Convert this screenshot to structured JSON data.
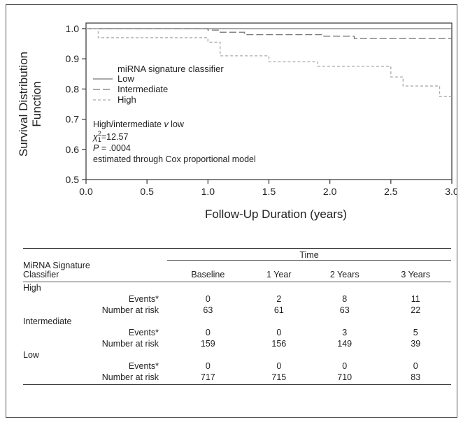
{
  "chart_data": {
    "type": "line",
    "title": "",
    "xlabel": "Follow-Up Duration (years)",
    "ylabel_lines": [
      "Survival Distribution",
      "Function"
    ],
    "xlim": [
      0,
      3
    ],
    "ylim": [
      0.5,
      1.0
    ],
    "xticks": [
      "0.0",
      "0.5",
      "1.0",
      "1.5",
      "2.0",
      "2.5",
      "3.0"
    ],
    "yticks": [
      "0.5",
      "0.6",
      "0.7",
      "0.8",
      "0.9",
      "1.0"
    ],
    "grid": false,
    "legend": {
      "title": "miRNA signature classifier",
      "placement": "top-left",
      "entries": [
        "Low",
        "Intermediate",
        "High"
      ]
    },
    "series": [
      {
        "name": "Low",
        "color": "#777777",
        "style": "solid",
        "steps": [
          [
            0,
            1.0
          ],
          [
            3.0,
            1.0
          ]
        ]
      },
      {
        "name": "Intermediate",
        "color": "#777777",
        "style": "long-dash",
        "steps": [
          [
            0,
            1.0
          ],
          [
            1.0,
            0.995
          ],
          [
            1.1,
            0.988
          ],
          [
            1.3,
            0.98
          ],
          [
            1.95,
            0.975
          ],
          [
            2.2,
            0.967
          ],
          [
            3.0,
            0.967
          ]
        ]
      },
      {
        "name": "High",
        "color": "#aaaaaa",
        "style": "short-dash",
        "steps": [
          [
            0,
            1.0
          ],
          [
            0.1,
            0.97
          ],
          [
            1.0,
            0.955
          ],
          [
            1.1,
            0.91
          ],
          [
            1.5,
            0.89
          ],
          [
            1.9,
            0.875
          ],
          [
            2.5,
            0.84
          ],
          [
            2.6,
            0.81
          ],
          [
            2.9,
            0.775
          ],
          [
            3.0,
            0.775
          ]
        ]
      }
    ],
    "annotation": {
      "comparison_pre": "High/intermediate ",
      "comparison_v": "v",
      "comparison_post": " low",
      "chi_symbol": "χ",
      "chi_sup": "2",
      "chi_sub": "1",
      "chi_value": "=12.57",
      "p_label": "P",
      "p_value": " = .0004",
      "method": "estimated through Cox proportional model"
    }
  },
  "risk_table": {
    "time_label": "Time",
    "first_col_line1": "MiRNA Signature",
    "first_col_line2": "Classifier",
    "columns": [
      "Baseline",
      "1 Year",
      "2 Years",
      "3 Years"
    ],
    "groups": [
      {
        "name": "High",
        "rows": [
          {
            "label": "Events*",
            "values": [
              "0",
              "2",
              "8",
              "11"
            ]
          },
          {
            "label": "Number at risk",
            "values": [
              "63",
              "61",
              "63",
              "22"
            ]
          }
        ]
      },
      {
        "name": "Intermediate",
        "rows": [
          {
            "label": "Events*",
            "values": [
              "0",
              "0",
              "3",
              "5"
            ]
          },
          {
            "label": "Number at risk",
            "values": [
              "159",
              "156",
              "149",
              "39"
            ]
          }
        ]
      },
      {
        "name": "Low",
        "rows": [
          {
            "label": "Events*",
            "values": [
              "0",
              "0",
              "0",
              "0"
            ]
          },
          {
            "label": "Number at risk",
            "values": [
              "717",
              "715",
              "710",
              "83"
            ]
          }
        ]
      }
    ]
  }
}
